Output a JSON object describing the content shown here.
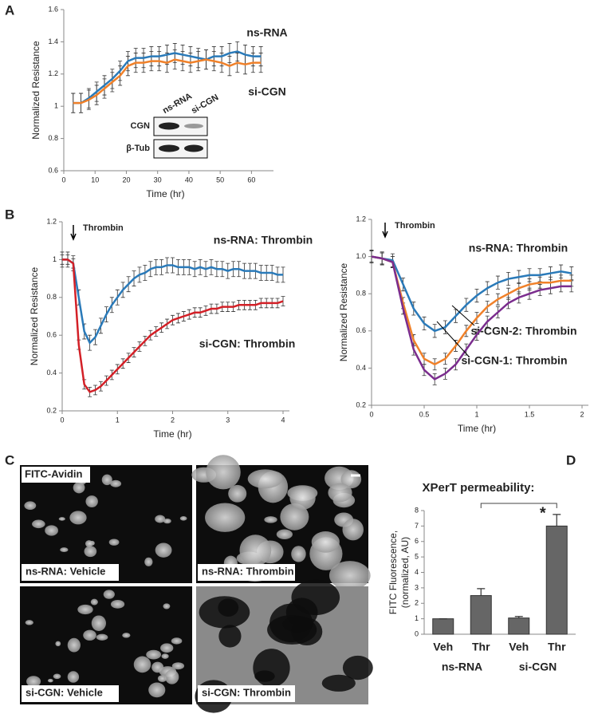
{
  "panels": [
    "A",
    "B",
    "C",
    "D"
  ],
  "chart_data": [
    {
      "type": "line",
      "xlabel": "Time (hr)",
      "ylabel": "Normalized Resistance",
      "x": [
        3,
        5.5,
        8,
        10.5,
        13,
        15.5,
        18,
        20.5,
        23,
        25.5,
        28,
        30.5,
        33,
        35.5,
        38,
        40.5,
        43,
        45.5,
        48,
        50.5,
        53,
        55.5,
        58,
        60.5,
        63
      ],
      "xlim": [
        0,
        65
      ],
      "xticks": [
        0,
        10,
        20,
        30,
        40,
        50,
        60
      ],
      "ylim": [
        0.6,
        1.6
      ],
      "yticks": [
        0.6,
        0.8,
        1,
        1.2,
        1.4,
        1.6
      ],
      "series": [
        {
          "name": "ns-RNA",
          "color": "#2a7ab9",
          "error": 0.06,
          "values": [
            1.02,
            1.02,
            1.05,
            1.09,
            1.13,
            1.17,
            1.22,
            1.28,
            1.3,
            1.3,
            1.31,
            1.31,
            1.32,
            1.33,
            1.32,
            1.31,
            1.3,
            1.29,
            1.31,
            1.31,
            1.33,
            1.34,
            1.32,
            1.31,
            1.31
          ]
        },
        {
          "name": "si-CGN",
          "color": "#f0812a",
          "error": 0.06,
          "values": [
            1.02,
            1.02,
            1.04,
            1.07,
            1.11,
            1.15,
            1.19,
            1.25,
            1.27,
            1.27,
            1.28,
            1.28,
            1.27,
            1.29,
            1.28,
            1.27,
            1.28,
            1.29,
            1.28,
            1.27,
            1.25,
            1.27,
            1.26,
            1.27,
            1.27
          ]
        }
      ],
      "inset": {
        "columns": [
          "ns-RNA",
          "si-CGN"
        ],
        "rows": [
          "CGN",
          "β-Tub"
        ]
      }
    },
    {
      "type": "line",
      "xlabel": "Time (hr)",
      "ylabel": "Normalized Resistance",
      "annotation": "Thrombin",
      "x": [
        0,
        0.1,
        0.2,
        0.3,
        0.4,
        0.5,
        0.6,
        0.7,
        0.8,
        0.9,
        1,
        1.1,
        1.2,
        1.3,
        1.4,
        1.5,
        1.6,
        1.7,
        1.8,
        1.9,
        2,
        2.1,
        2.2,
        2.3,
        2.4,
        2.5,
        2.6,
        2.7,
        2.8,
        2.9,
        3,
        3.1,
        3.2,
        3.3,
        3.4,
        3.5,
        3.6,
        3.7,
        3.8,
        3.9,
        4
      ],
      "xlim": [
        0,
        4
      ],
      "xticks": [
        0,
        1,
        2,
        3,
        4
      ],
      "ylim": [
        0.2,
        1.2
      ],
      "yticks": [
        0.2,
        0.4,
        0.6,
        0.8,
        1,
        1.2
      ],
      "series": [
        {
          "name": "ns-RNA: Thrombin",
          "color": "#2a7ab9",
          "error": 0.04,
          "values": [
            1.0,
            1.0,
            0.98,
            0.8,
            0.62,
            0.56,
            0.59,
            0.65,
            0.71,
            0.76,
            0.8,
            0.84,
            0.87,
            0.9,
            0.92,
            0.93,
            0.95,
            0.96,
            0.96,
            0.97,
            0.97,
            0.96,
            0.96,
            0.96,
            0.95,
            0.96,
            0.95,
            0.96,
            0.95,
            0.95,
            0.94,
            0.95,
            0.95,
            0.94,
            0.94,
            0.94,
            0.93,
            0.93,
            0.93,
            0.92,
            0.92
          ]
        },
        {
          "name": "si-CGN: Thrombin",
          "color": "#d32027",
          "error": 0.025,
          "values": [
            1.0,
            1.0,
            0.98,
            0.55,
            0.34,
            0.3,
            0.31,
            0.33,
            0.36,
            0.39,
            0.42,
            0.45,
            0.48,
            0.51,
            0.54,
            0.57,
            0.6,
            0.62,
            0.64,
            0.66,
            0.68,
            0.69,
            0.7,
            0.71,
            0.72,
            0.72,
            0.73,
            0.74,
            0.74,
            0.75,
            0.75,
            0.75,
            0.76,
            0.76,
            0.76,
            0.76,
            0.77,
            0.77,
            0.77,
            0.77,
            0.78
          ]
        }
      ]
    },
    {
      "type": "line",
      "xlabel": "Time (hr)",
      "ylabel": "Normalized Resistance",
      "annotation": "Thrombin",
      "x": [
        0,
        0.1,
        0.2,
        0.3,
        0.4,
        0.5,
        0.6,
        0.7,
        0.8,
        0.9,
        1,
        1.1,
        1.2,
        1.3,
        1.4,
        1.5,
        1.6,
        1.7,
        1.8,
        1.9
      ],
      "xlim": [
        0,
        2
      ],
      "xticks": [
        0,
        0.5,
        1,
        1.5,
        2
      ],
      "ylim": [
        0.2,
        1.2
      ],
      "yticks": [
        0.2,
        0.4,
        0.6,
        0.8,
        {
          "value": 1,
          "label": "1.0"
        },
        1.2
      ],
      "series": [
        {
          "name": "ns-RNA: Thrombin",
          "color": "#2a7ab9",
          "error": 0.035,
          "values": [
            1.0,
            0.99,
            0.98,
            0.85,
            0.72,
            0.64,
            0.6,
            0.62,
            0.68,
            0.74,
            0.79,
            0.83,
            0.86,
            0.88,
            0.89,
            0.9,
            0.9,
            0.91,
            0.92,
            0.91
          ]
        },
        {
          "name": "si-CGN-2: Thrombin",
          "color": "#f0812a",
          "error": 0.03,
          "values": [
            1.0,
            0.99,
            0.97,
            0.75,
            0.55,
            0.45,
            0.42,
            0.45,
            0.52,
            0.6,
            0.67,
            0.73,
            0.77,
            0.8,
            0.83,
            0.85,
            0.86,
            0.86,
            0.87,
            0.87
          ]
        },
        {
          "name": "si-CGN-1: Thrombin",
          "color": "#7b2d8e",
          "error": 0.03,
          "values": [
            1.0,
            0.99,
            0.97,
            0.72,
            0.5,
            0.39,
            0.34,
            0.37,
            0.42,
            0.5,
            0.58,
            0.65,
            0.7,
            0.75,
            0.78,
            0.8,
            0.82,
            0.83,
            0.84,
            0.84
          ]
        }
      ]
    },
    {
      "type": "bar",
      "title": "XPerT permeability:",
      "ylabel": [
        "FITC Fluorescence,",
        "(normalized, AU)"
      ],
      "categories": [
        "Veh",
        "Thr",
        "Veh",
        "Thr"
      ],
      "groups": [
        "ns-RNA",
        "si-CGN"
      ],
      "values": [
        1,
        2.5,
        1.05,
        7
      ],
      "errors": [
        0,
        0.45,
        0.1,
        0.75
      ],
      "color": "#666666",
      "ylim": [
        0,
        8
      ],
      "yticks": [
        0,
        1,
        2,
        3,
        4,
        5,
        6,
        7,
        8
      ],
      "significance": "*"
    }
  ],
  "micrographs": {
    "stain": "FITC-Avidin",
    "labels": [
      "ns-RNA: Vehicle",
      "ns-RNA: Thrombin",
      "si-CGN: Vehicle",
      "si-CGN: Thrombin"
    ]
  }
}
